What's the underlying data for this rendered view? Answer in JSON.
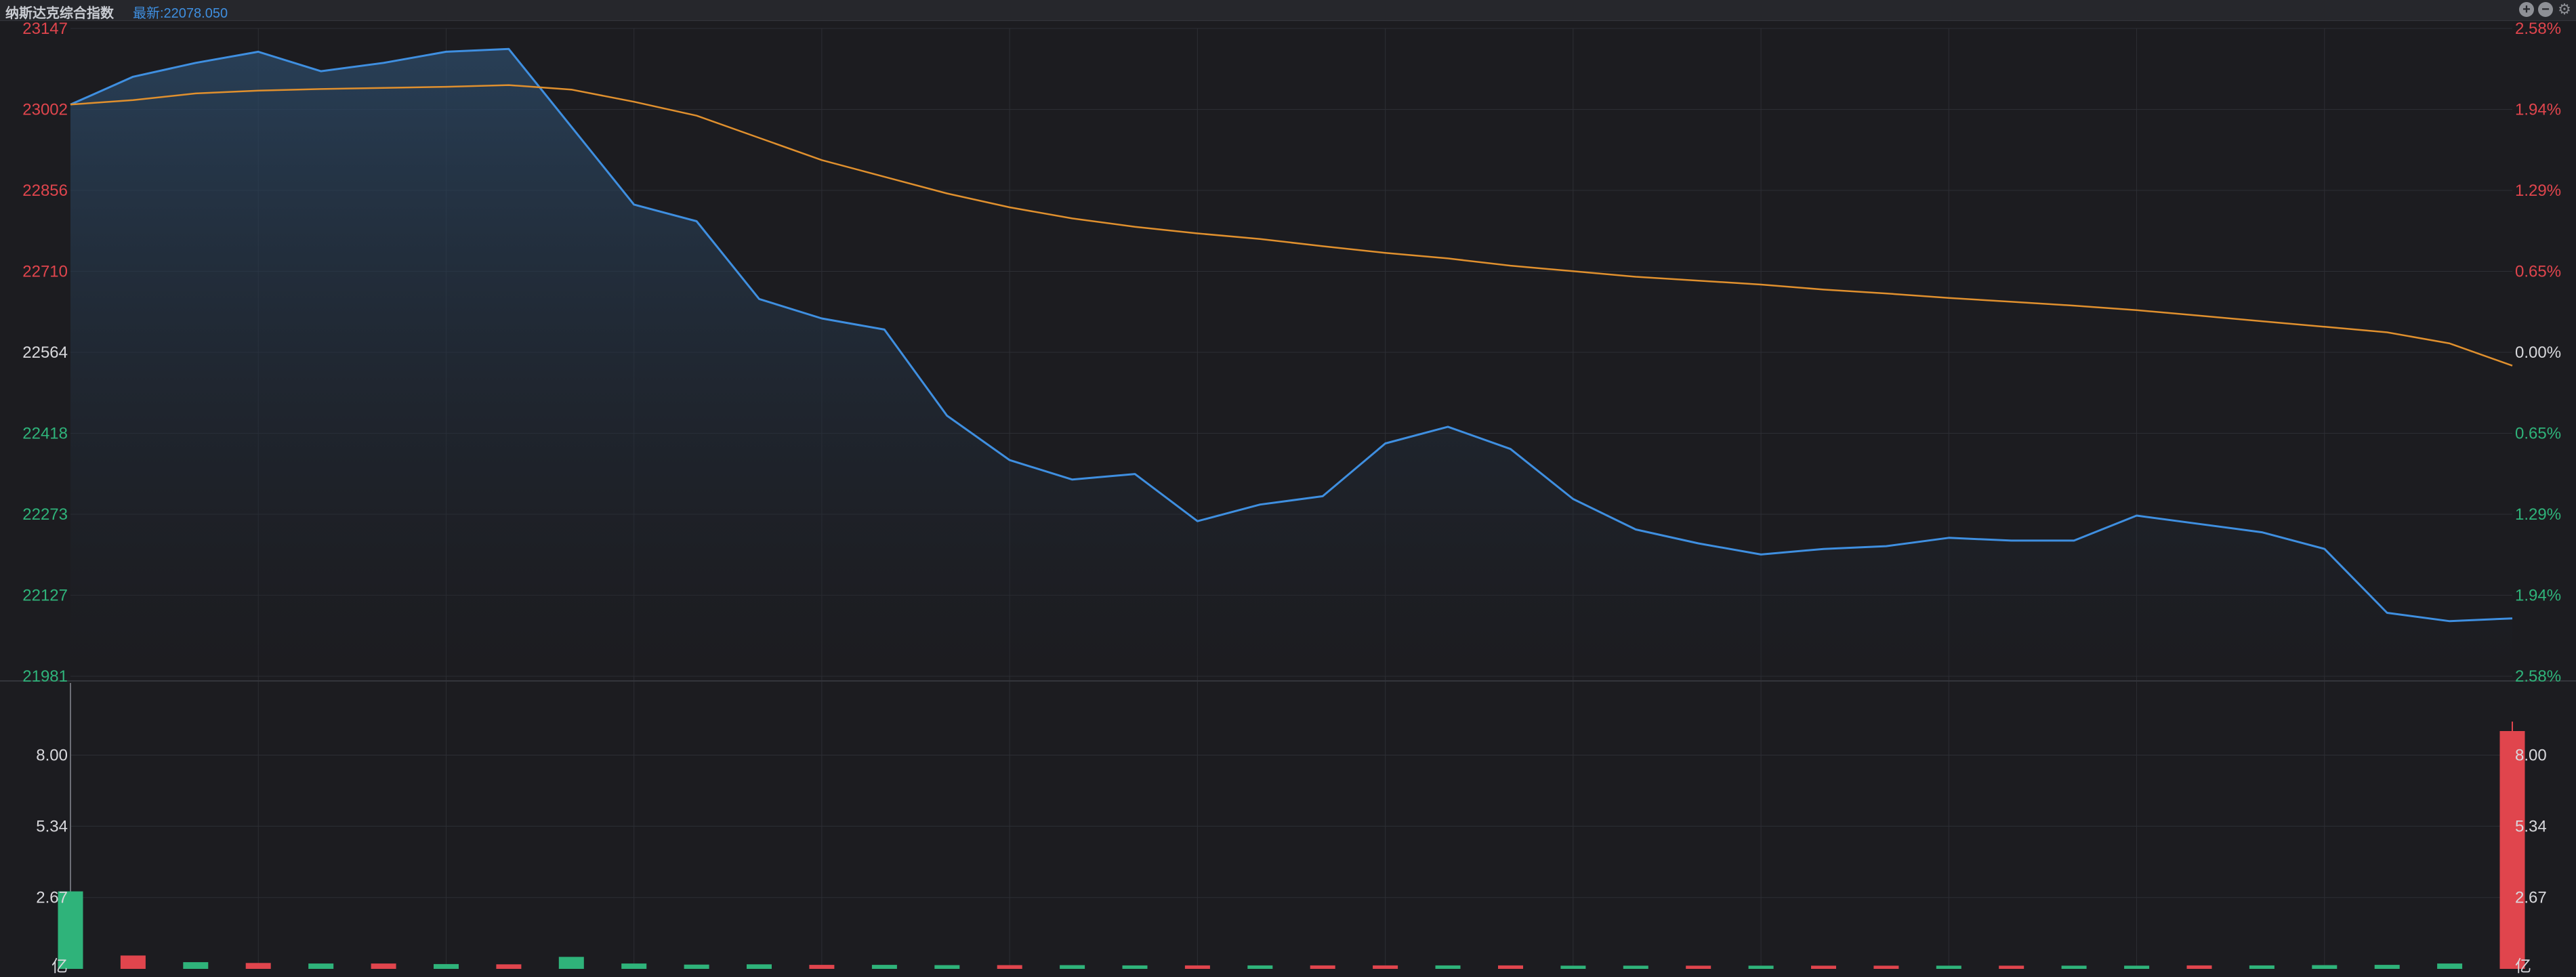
{
  "header": {
    "title": "纳斯达克综合指数",
    "latest": "最新:22078.050",
    "zoom_in_icon": "plus-circle-icon",
    "zoom_out_icon": "minus-circle-icon",
    "settings_icon": "gear-icon"
  },
  "colors": {
    "background": "#1c1c20",
    "up": "#e0454d",
    "down": "#2fb37a",
    "neutral": "#d8d8dc",
    "price_line": "#3f8fe0",
    "avg_line": "#e0902e",
    "grid": "#2d2e34"
  },
  "chart_data": [
    {
      "type": "line",
      "name": "price-panel",
      "ylim": [
        21981,
        23147
      ],
      "y_ticks_left": [
        "23147",
        "23002",
        "22856",
        "22710",
        "22564",
        "22418",
        "22273",
        "22127",
        "21981"
      ],
      "y_ticks_right": [
        "2.58%",
        "1.94%",
        "1.29%",
        "0.65%",
        "0.00%",
        "0.65%",
        "1.29%",
        "1.94%",
        "2.58%"
      ],
      "reference": 22564,
      "grid": true,
      "x": [
        0,
        10,
        20,
        30,
        40,
        50,
        60,
        70,
        80,
        90,
        100,
        110,
        120,
        130,
        140,
        150,
        160,
        170,
        180,
        190,
        200,
        210,
        220,
        230,
        240,
        250,
        260,
        270,
        280,
        290,
        300,
        310,
        320,
        330,
        340,
        350,
        360,
        370,
        380,
        390
      ],
      "series": [
        {
          "values": [
            23010,
            23060,
            23085,
            23105,
            23070,
            23085,
            23105,
            23110,
            22970,
            22830,
            22800,
            22660,
            22625,
            22605,
            22450,
            22370,
            22335,
            22345,
            22260,
            22290,
            22305,
            22400,
            22430,
            22390,
            22300,
            22245,
            22220,
            22200,
            22210,
            22215,
            22230,
            22225,
            22225,
            22270,
            22255,
            22240,
            22210,
            22095,
            22080,
            22085
          ]
        },
        {
          "values": [
            23010,
            23018,
            23030,
            23035,
            23038,
            23040,
            23042,
            23045,
            23037,
            23015,
            22990,
            22950,
            22910,
            22880,
            22850,
            22825,
            22805,
            22790,
            22778,
            22768,
            22755,
            22743,
            22733,
            22720,
            22710,
            22700,
            22693,
            22686,
            22677,
            22670,
            22662,
            22655,
            22648,
            22640,
            22630,
            22620,
            22610,
            22600,
            22580,
            22540
          ]
        }
      ]
    },
    {
      "type": "bar",
      "name": "volume-panel",
      "ylim": [
        0,
        10.7
      ],
      "y_ticks": [
        "8.00",
        "5.34",
        "2.67"
      ],
      "unit": "亿",
      "x": [
        0,
        10,
        20,
        30,
        40,
        50,
        60,
        70,
        80,
        90,
        100,
        110,
        120,
        130,
        140,
        150,
        160,
        170,
        180,
        190,
        200,
        210,
        220,
        230,
        240,
        250,
        260,
        270,
        280,
        290,
        300,
        310,
        320,
        330,
        340,
        350,
        360,
        370,
        380,
        390
      ],
      "values": [
        2.9,
        0.5,
        0.25,
        0.22,
        0.2,
        0.2,
        0.18,
        0.17,
        0.45,
        0.2,
        0.16,
        0.17,
        0.15,
        0.15,
        0.14,
        0.14,
        0.14,
        0.13,
        0.13,
        0.13,
        0.13,
        0.13,
        0.13,
        0.13,
        0.12,
        0.12,
        0.12,
        0.12,
        0.12,
        0.12,
        0.12,
        0.12,
        0.12,
        0.12,
        0.13,
        0.13,
        0.14,
        0.15,
        0.2,
        8.9
      ],
      "bar_colors": [
        "down",
        "up",
        "down",
        "up",
        "down",
        "up",
        "down",
        "up",
        "down",
        "down",
        "down",
        "down",
        "up",
        "down",
        "down",
        "up",
        "down",
        "down",
        "up",
        "down",
        "up",
        "up",
        "down",
        "up",
        "down",
        "down",
        "up",
        "down",
        "up",
        "up",
        "down",
        "up",
        "down",
        "down",
        "up",
        "down",
        "down",
        "down",
        "down",
        "up"
      ]
    }
  ]
}
